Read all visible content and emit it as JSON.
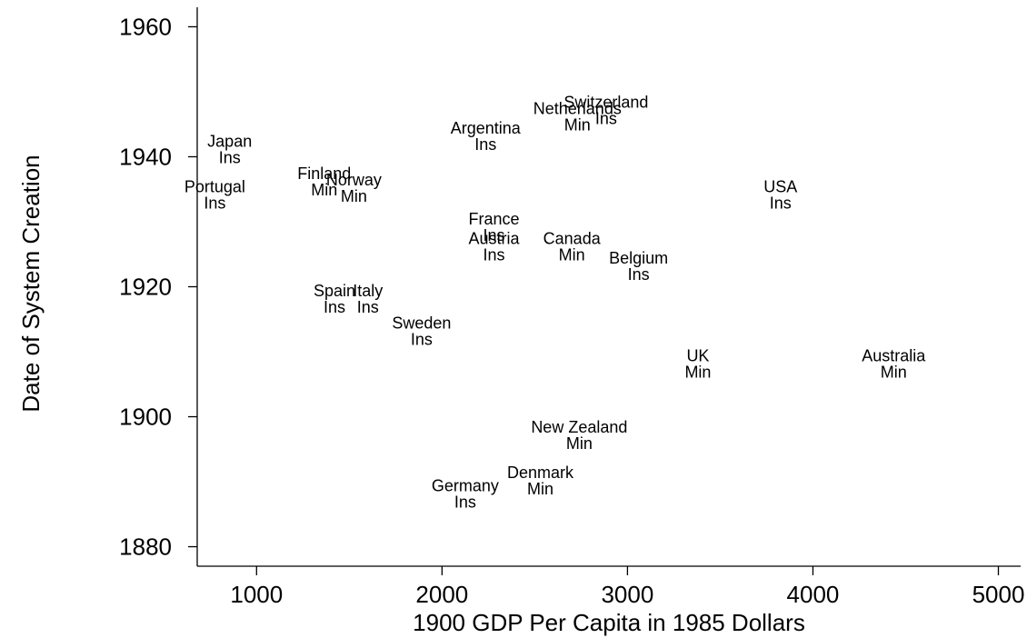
{
  "chart_data": {
    "type": "scatter",
    "title": "",
    "xlabel": "1900 GDP Per Capita in 1985 Dollars",
    "ylabel": "Date of System Creation",
    "xlim": [
      680,
      5120
    ],
    "ylim": [
      1877,
      1963
    ],
    "xticks": [
      1000,
      2000,
      3000,
      4000,
      5000
    ],
    "yticks": [
      1880,
      1900,
      1920,
      1940,
      1960
    ],
    "grid": false,
    "legend": "none",
    "points": [
      {
        "name": "Japan",
        "type": "Ins",
        "x": 855,
        "y": 1941
      },
      {
        "name": "Portugal",
        "type": "Ins",
        "x": 775,
        "y": 1934
      },
      {
        "name": "Finland",
        "type": "Min",
        "x": 1365,
        "y": 1936
      },
      {
        "name": "Norway",
        "type": "Min",
        "x": 1525,
        "y": 1935
      },
      {
        "name": "Spain",
        "type": "Ins",
        "x": 1420,
        "y": 1918
      },
      {
        "name": "Italy",
        "type": "Ins",
        "x": 1600,
        "y": 1918
      },
      {
        "name": "Sweden",
        "type": "Ins",
        "x": 1890,
        "y": 1913
      },
      {
        "name": "Argentina",
        "type": "Ins",
        "x": 2235,
        "y": 1943
      },
      {
        "name": "France",
        "type": "Ins",
        "x": 2280,
        "y": 1929
      },
      {
        "name": "Austria",
        "type": "Ins",
        "x": 2280,
        "y": 1926
      },
      {
        "name": "Netherlands",
        "type": "Min",
        "x": 2730,
        "y": 1946
      },
      {
        "name": "Switzerland",
        "type": "Ins",
        "x": 2885,
        "y": 1947
      },
      {
        "name": "Canada",
        "type": "Min",
        "x": 2700,
        "y": 1926
      },
      {
        "name": "Belgium",
        "type": "Ins",
        "x": 3060,
        "y": 1923
      },
      {
        "name": "USA",
        "type": "Ins",
        "x": 3825,
        "y": 1934
      },
      {
        "name": "UK",
        "type": "Min",
        "x": 3380,
        "y": 1908
      },
      {
        "name": "Australia",
        "type": "Min",
        "x": 4435,
        "y": 1908
      },
      {
        "name": "New Zealand",
        "type": "Min",
        "x": 2740,
        "y": 1897
      },
      {
        "name": "Denmark",
        "type": "Min",
        "x": 2530,
        "y": 1890
      },
      {
        "name": "Germany",
        "type": "Ins",
        "x": 2125,
        "y": 1888
      }
    ]
  }
}
